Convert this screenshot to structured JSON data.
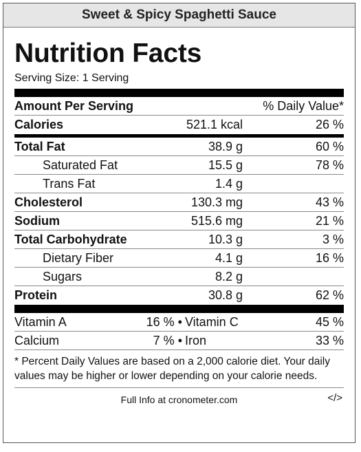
{
  "header": {
    "title": "Sweet & Spicy Spaghetti Sauce"
  },
  "label": {
    "title": "Nutrition Facts",
    "serving": "Serving Size: 1 Serving",
    "amount_header": "Amount Per Serving",
    "dv_header": "% Daily Value*",
    "calories": {
      "name": "Calories",
      "amount": "521.1 kcal",
      "dv": "26 %"
    },
    "nutrients": [
      {
        "name": "Total Fat",
        "amount": "38.9 g",
        "dv": "60 %"
      },
      {
        "name": "Saturated Fat",
        "amount": "15.5 g",
        "dv": "78 %"
      },
      {
        "name": "Trans Fat",
        "amount": "1.4 g",
        "dv": ""
      },
      {
        "name": "Cholesterol",
        "amount": "130.3 mg",
        "dv": "43 %"
      },
      {
        "name": "Sodium",
        "amount": "515.6 mg",
        "dv": "21 %"
      },
      {
        "name": "Total Carbohydrate",
        "amount": "10.3 g",
        "dv": "3 %"
      },
      {
        "name": "Dietary Fiber",
        "amount": "4.1 g",
        "dv": "16 %"
      },
      {
        "name": "Sugars",
        "amount": "8.2 g",
        "dv": ""
      },
      {
        "name": "Protein",
        "amount": "30.8 g",
        "dv": "62 %"
      }
    ],
    "vitamins": [
      {
        "a_name": "Vitamin A",
        "a_dv": "16 % •",
        "b_name": "Vitamin C",
        "b_dv": "45 %"
      },
      {
        "a_name": "Calcium",
        "a_dv": "7 % •",
        "b_name": "Iron",
        "b_dv": "33 %"
      }
    ],
    "footnote": "* Percent Daily Values are based on a 2,000 calorie diet. Your daily values may be higher or lower depending on your calorie needs.",
    "info_link": "Full Info at cronometer.com",
    "embed_label": "</>"
  }
}
